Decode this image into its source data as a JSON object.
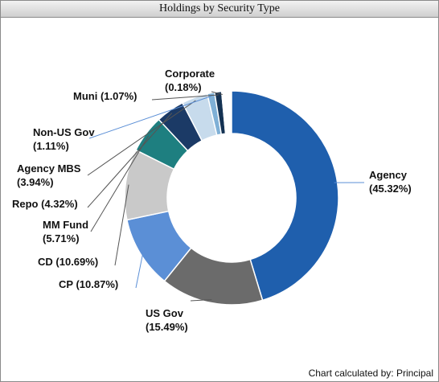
{
  "chart_data": {
    "type": "donut",
    "title": "Holdings by Security Type",
    "categories": [
      "Agency",
      "US Gov",
      "CP",
      "CD",
      "MM Fund",
      "Repo",
      "Agency MBS",
      "Non-US Gov",
      "Muni",
      "Corporate"
    ],
    "values": [
      45.32,
      15.49,
      10.87,
      10.69,
      5.71,
      4.32,
      3.94,
      1.11,
      1.07,
      0.18
    ],
    "value_labels": [
      "(45.32%)",
      "(15.49%)",
      "(10.87%)",
      "(10.69%)",
      "(5.71%)",
      "(4.32%)",
      "(3.94%)",
      "(1.11%)",
      "(1.07%)",
      "(0.18%)"
    ],
    "colors": [
      "#1f5fad",
      "#6b6b6b",
      "#5b8fd6",
      "#c9c9c9",
      "#1e7f80",
      "#1b3a66",
      "#c7dbec",
      "#7fb0d6",
      "#143253",
      "#9a9a9a"
    ],
    "footnote": "Chart calculated by: Principal"
  }
}
